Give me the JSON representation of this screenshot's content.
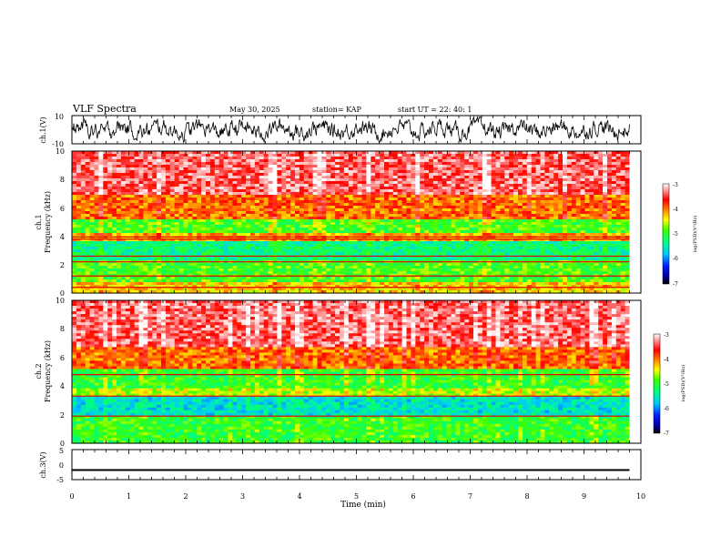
{
  "header": {
    "title": "VLF Spectra",
    "date": "May 30, 2025",
    "station": "station= KAP",
    "start": "start  UT =   22: 40: 1"
  },
  "chart_data": [
    {
      "type": "line",
      "name": "ch1-waveform",
      "ylabel": "ch.1(V)",
      "ylim": [
        -10,
        10
      ],
      "y_ticks": [
        "10",
        "-10"
      ],
      "x_range_min": [
        0,
        9.8
      ],
      "description_values": "dense noisy waveform oscillating roughly between -7 and 7 V"
    },
    {
      "type": "heatmap",
      "name": "ch1-spectrogram",
      "ylabel": "Frequency (kHz)",
      "channel_label": "ch.1",
      "ylim": [
        0,
        10
      ],
      "y_ticks": [
        "0",
        "2",
        "4",
        "6",
        "8",
        "10"
      ],
      "bands_khz": [
        {
          "from": 0,
          "to": 0.8,
          "level": -4.3
        },
        {
          "from": 0.8,
          "to": 2.3,
          "level": -4.9
        },
        {
          "from": 2.3,
          "to": 3.6,
          "level": -5.3
        },
        {
          "from": 3.6,
          "to": 4.2,
          "level": -4.2
        },
        {
          "from": 4.2,
          "to": 5.2,
          "level": -4.9
        },
        {
          "from": 5.2,
          "to": 7.0,
          "level": -4.0
        },
        {
          "from": 7.0,
          "to": 10.0,
          "level": -3.4
        }
      ],
      "lines_khz": [
        0.4,
        1.2,
        2.2,
        2.6,
        3.8,
        3.95
      ]
    },
    {
      "type": "heatmap",
      "name": "ch2-spectrogram",
      "ylabel": "Frequency (kHz)",
      "channel_label": "ch.2",
      "ylim": [
        0,
        10
      ],
      "y_ticks": [
        "0",
        "2",
        "4",
        "6",
        "8",
        "10"
      ],
      "bands_khz": [
        {
          "from": 0,
          "to": 0.6,
          "level": -5.0
        },
        {
          "from": 0.6,
          "to": 2.0,
          "level": -5.0
        },
        {
          "from": 2.0,
          "to": 3.3,
          "level": -5.6
        },
        {
          "from": 3.3,
          "to": 3.8,
          "level": -4.6
        },
        {
          "from": 3.8,
          "to": 5.2,
          "level": -5.0
        },
        {
          "from": 5.2,
          "to": 6.8,
          "level": -4.0
        },
        {
          "from": 6.8,
          "to": 10.0,
          "level": -3.4
        }
      ],
      "lines_khz": [
        1.9,
        3.3,
        4.8
      ]
    },
    {
      "type": "line",
      "name": "ch3-waveform",
      "ylabel": "ch.3(V)",
      "ylim": [
        -5,
        5
      ],
      "y_ticks": [
        "5",
        "0",
        "-5"
      ],
      "level_v": -1.8,
      "band_halfwidth_v": 0.3
    }
  ],
  "x_axis": {
    "label": "Time (min)",
    "range": [
      0,
      10
    ],
    "ticks": [
      "0",
      "1",
      "2",
      "3",
      "4",
      "5",
      "6",
      "7",
      "8",
      "9",
      "10"
    ],
    "data_end_min": 9.8
  },
  "colorbar": {
    "label": "log(PSD)(V²/Hz)",
    "range": [
      -7,
      -3
    ],
    "ticks": [
      "-3",
      "-4",
      "-5",
      "-6",
      "-7"
    ]
  }
}
